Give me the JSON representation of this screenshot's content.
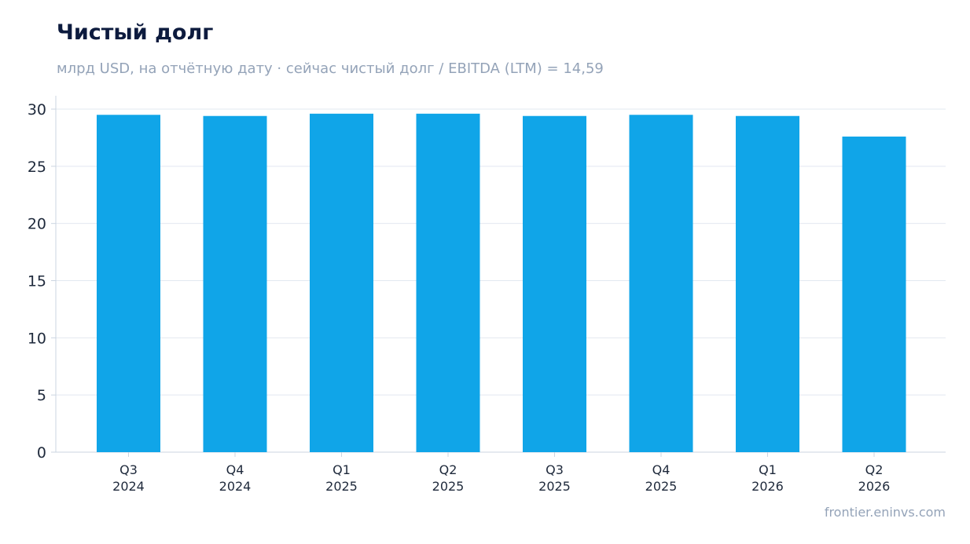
{
  "header": {
    "title": "Чистый долг",
    "subtitle": "млрд USD, на отчётную дату · сейчас чистый долг / EBITDA (LTM) = 14,59"
  },
  "footer": {
    "source": "frontier.eninvs.com"
  },
  "colors": {
    "bar": "#10a5e8",
    "title": "#0d1b3e",
    "subtitle": "#94a3b8",
    "grid": "#e2e8f0",
    "axis": "#cbd5e1",
    "tick_text": "#1e293b"
  },
  "chart_data": {
    "type": "bar",
    "categories": [
      [
        "Q3",
        "2024"
      ],
      [
        "Q4",
        "2024"
      ],
      [
        "Q1",
        "2025"
      ],
      [
        "Q2",
        "2025"
      ],
      [
        "Q3",
        "2025"
      ],
      [
        "Q4",
        "2025"
      ],
      [
        "Q1",
        "2026"
      ],
      [
        "Q2",
        "2026"
      ]
    ],
    "values": [
      29.5,
      29.4,
      29.6,
      29.6,
      29.4,
      29.5,
      29.4,
      27.6
    ],
    "yticks": [
      0,
      5,
      10,
      15,
      20,
      25,
      30
    ],
    "ylim": [
      0,
      30
    ],
    "grid": true,
    "legend": "none"
  }
}
